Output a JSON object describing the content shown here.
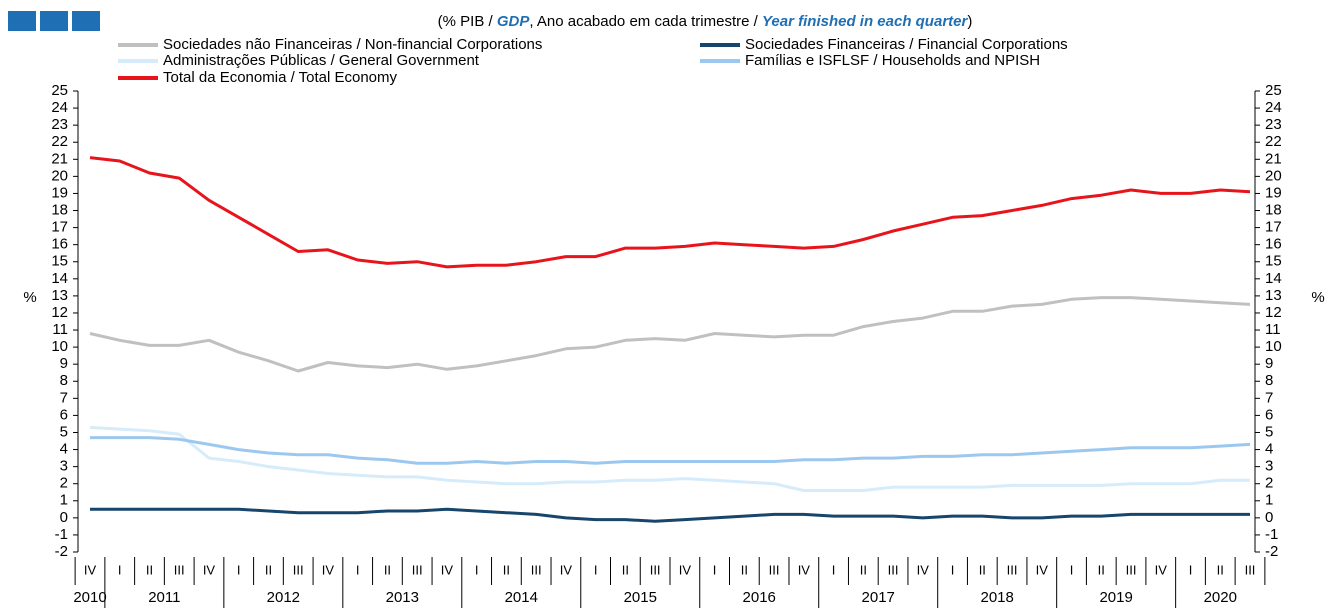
{
  "chart_data": {
    "type": "line",
    "title": [
      "(% PIB / ",
      "GDP",
      ", Ano acabado em cada trimestre / ",
      "Year finished in each quarter",
      ")"
    ],
    "ylabel": "%",
    "y2label": "%",
    "categories": [
      "IV",
      "I",
      "II",
      "III",
      "IV",
      "I",
      "II",
      "III",
      "IV",
      "I",
      "II",
      "III",
      "IV",
      "I",
      "II",
      "III",
      "IV",
      "I",
      "II",
      "III",
      "IV",
      "I",
      "II",
      "III",
      "IV",
      "I",
      "II",
      "III",
      "IV",
      "I",
      "II",
      "III",
      "IV",
      "I",
      "II",
      "III",
      "IV",
      "I",
      "II",
      "III"
    ],
    "years": [
      "2010",
      "2011",
      "2012",
      "2013",
      "2014",
      "2015",
      "2016",
      "2017",
      "2018",
      "2019",
      "2020"
    ],
    "ylim": [
      -2,
      25
    ],
    "yticks": [
      -2,
      -1,
      0,
      1,
      2,
      3,
      4,
      5,
      6,
      7,
      8,
      9,
      10,
      11,
      12,
      13,
      14,
      15,
      16,
      17,
      18,
      19,
      20,
      21,
      22,
      23,
      24,
      25
    ],
    "y2lim": [
      -2,
      25
    ],
    "y2ticks": [
      -2,
      -1,
      0,
      1,
      2,
      3,
      4,
      5,
      6,
      7,
      8,
      9,
      10,
      11,
      12,
      13,
      14,
      15,
      16,
      17,
      18,
      19,
      20,
      21,
      22,
      23,
      24,
      25
    ],
    "series": [
      {
        "name": "Sociedades não Financeiras / Non-financial Corporations",
        "color": "#c0c0c0",
        "values": [
          10.8,
          10.4,
          10.1,
          10.1,
          10.4,
          9.7,
          9.2,
          8.6,
          9.1,
          8.9,
          8.8,
          9.0,
          8.7,
          8.9,
          9.2,
          9.5,
          9.9,
          10.0,
          10.4,
          10.5,
          10.4,
          10.8,
          10.7,
          10.6,
          10.7,
          10.7,
          11.2,
          11.5,
          11.7,
          12.1,
          12.1,
          12.4,
          12.5,
          12.8,
          12.9,
          12.9,
          12.8,
          12.7,
          12.6,
          12.5
        ]
      },
      {
        "name": "Sociedades Financeiras / Financial Corporations",
        "color": "#17456b",
        "values": [
          0.5,
          0.5,
          0.5,
          0.5,
          0.5,
          0.5,
          0.4,
          0.3,
          0.3,
          0.3,
          0.4,
          0.4,
          0.5,
          0.4,
          0.3,
          0.2,
          0.0,
          -0.1,
          -0.1,
          -0.2,
          -0.1,
          0.0,
          0.1,
          0.2,
          0.2,
          0.1,
          0.1,
          0.1,
          0.0,
          0.1,
          0.1,
          0.0,
          0.0,
          0.1,
          0.1,
          0.2,
          0.2,
          0.2,
          0.2,
          0.2
        ]
      },
      {
        "name": "Administrações Públicas / General Government",
        "color": "#d6ecfb",
        "values": [
          5.3,
          5.2,
          5.1,
          4.9,
          3.5,
          3.3,
          3.0,
          2.8,
          2.6,
          2.5,
          2.4,
          2.4,
          2.2,
          2.1,
          2.0,
          2.0,
          2.1,
          2.1,
          2.2,
          2.2,
          2.3,
          2.2,
          2.1,
          2.0,
          1.6,
          1.6,
          1.6,
          1.8,
          1.8,
          1.8,
          1.8,
          1.9,
          1.9,
          1.9,
          1.9,
          2.0,
          2.0,
          2.0,
          2.2,
          2.2
        ]
      },
      {
        "name": "Famílias e ISFLSF / Households and NPISH",
        "color": "#9cc8ef",
        "values": [
          4.7,
          4.7,
          4.7,
          4.6,
          4.3,
          4.0,
          3.8,
          3.7,
          3.7,
          3.5,
          3.4,
          3.2,
          3.2,
          3.3,
          3.2,
          3.3,
          3.3,
          3.2,
          3.3,
          3.3,
          3.3,
          3.3,
          3.3,
          3.3,
          3.4,
          3.4,
          3.5,
          3.5,
          3.6,
          3.6,
          3.7,
          3.7,
          3.8,
          3.9,
          4.0,
          4.1,
          4.1,
          4.1,
          4.2,
          4.3
        ]
      },
      {
        "name": "Total da Economia / Total Economy",
        "color": "#e8141b",
        "values": [
          21.1,
          20.9,
          20.2,
          19.9,
          18.6,
          17.6,
          16.6,
          15.6,
          15.7,
          15.1,
          14.9,
          15.0,
          14.7,
          14.8,
          14.8,
          15.0,
          15.3,
          15.3,
          15.8,
          15.8,
          15.9,
          16.1,
          16.0,
          15.9,
          15.8,
          15.9,
          16.3,
          16.8,
          17.2,
          17.6,
          17.7,
          18.0,
          18.3,
          18.7,
          18.9,
          19.2,
          19.0,
          19.0,
          19.2,
          19.1
        ]
      }
    ]
  }
}
